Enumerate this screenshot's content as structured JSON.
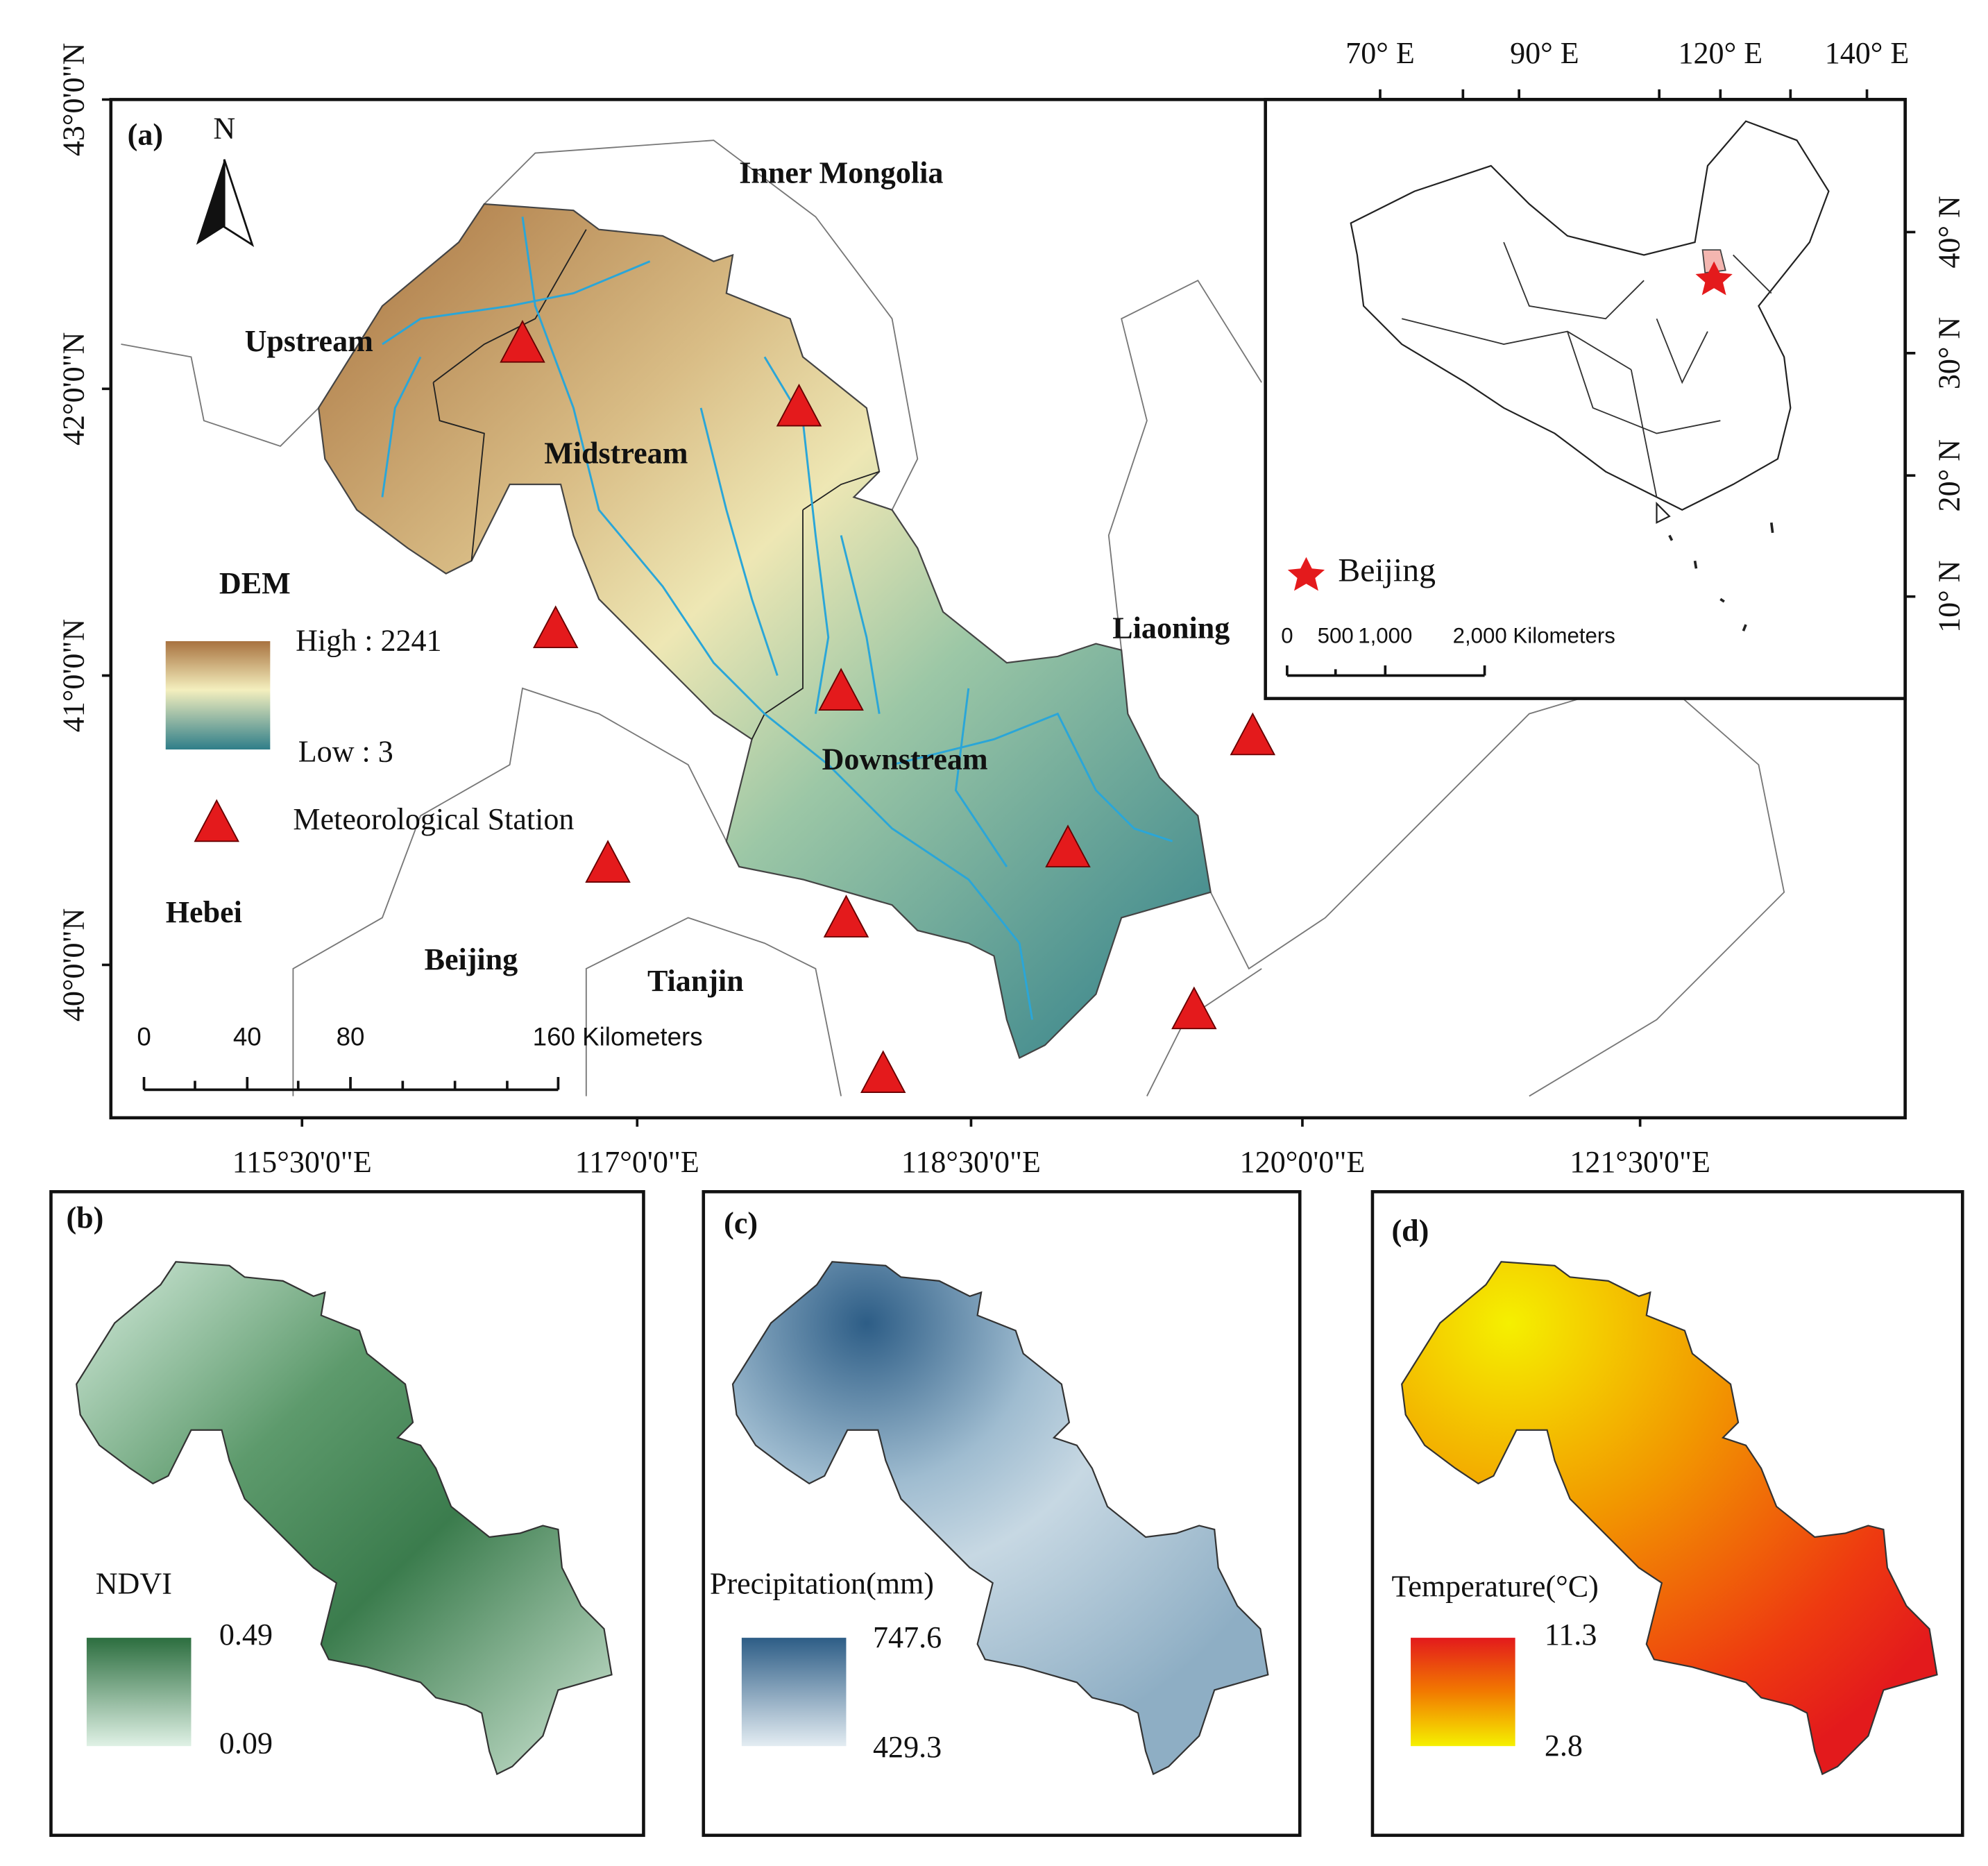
{
  "panel_a": {
    "label": "(a)",
    "north": "N",
    "regions": [
      "Inner Mongolia",
      "Hebei",
      "Beijing",
      "Tianjin",
      "Liaoning"
    ],
    "subbasins": [
      "Upstream",
      "Midstream",
      "Downstream"
    ],
    "legend": {
      "title": "DEM",
      "high": "High : 2241",
      "low": "Low : 3",
      "station": "Meteorological Station"
    },
    "scale_bar": [
      "0",
      "40",
      "80",
      "160 Kilometers"
    ],
    "lat_ticks": [
      "43°0'0\"N",
      "42°0'0\"N",
      "41°0'0\"N",
      "40°0'0\"N"
    ],
    "lon_ticks": [
      "115°30'0\"E",
      "117°0'0\"E",
      "118°30'0\"E",
      "120°0'0\"E",
      "121°30'0\"E"
    ],
    "inset": {
      "lon_ticks": [
        "70° E",
        "90° E",
        "120° E",
        "140° E"
      ],
      "lat_ticks": [
        "40° N",
        "30° N",
        "20° N",
        "10° N"
      ],
      "legend": "Beijing",
      "scale_bar": [
        "0",
        "500",
        "1,000",
        "2,000 Kilometers"
      ]
    }
  },
  "panel_b": {
    "label": "(b)",
    "legend_title": "NDVI",
    "max": "0.49",
    "min": "0.09"
  },
  "panel_c": {
    "label": "(c)",
    "legend_title": "Precipitation(mm)",
    "max": "747.6",
    "min": "429.3"
  },
  "panel_d": {
    "label": "(d)",
    "legend_title": "Temperature(°C)",
    "max": "11.3",
    "min": "2.8"
  }
}
